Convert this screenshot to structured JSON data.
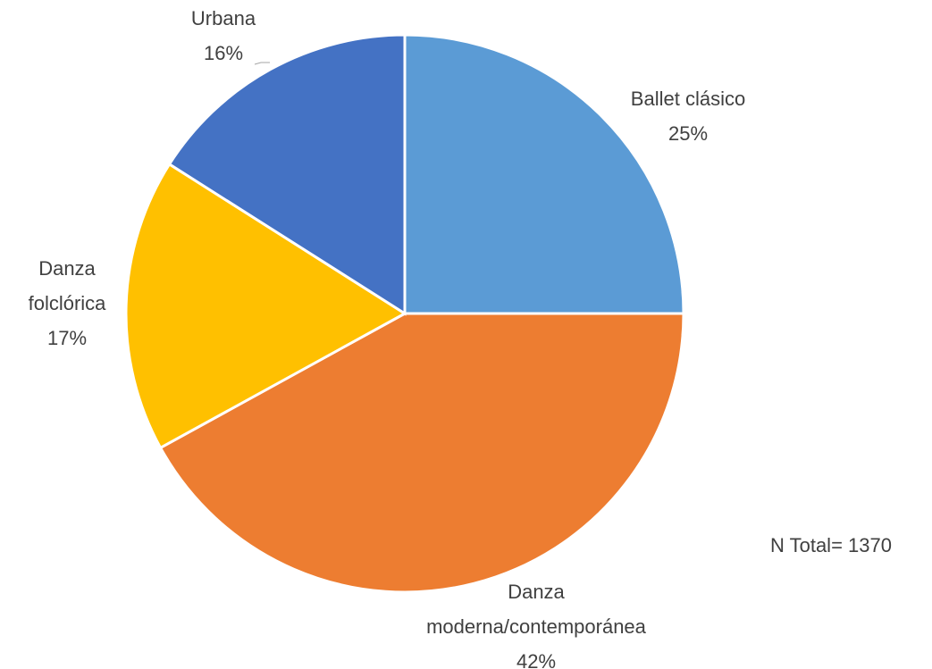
{
  "chart_data": {
    "type": "pie",
    "categories": [
      "Ballet clásico",
      "Danza moderna/contemporánea",
      "Danza folclórica",
      "Urbana"
    ],
    "values": [
      25,
      42,
      17,
      16
    ],
    "value_labels": [
      "25%",
      "42%",
      "17%",
      "16%"
    ],
    "colors": [
      "#5b9bd5",
      "#ed7d31",
      "#ffc000",
      "#4472c4"
    ],
    "annotation": "N Total= 1370"
  }
}
